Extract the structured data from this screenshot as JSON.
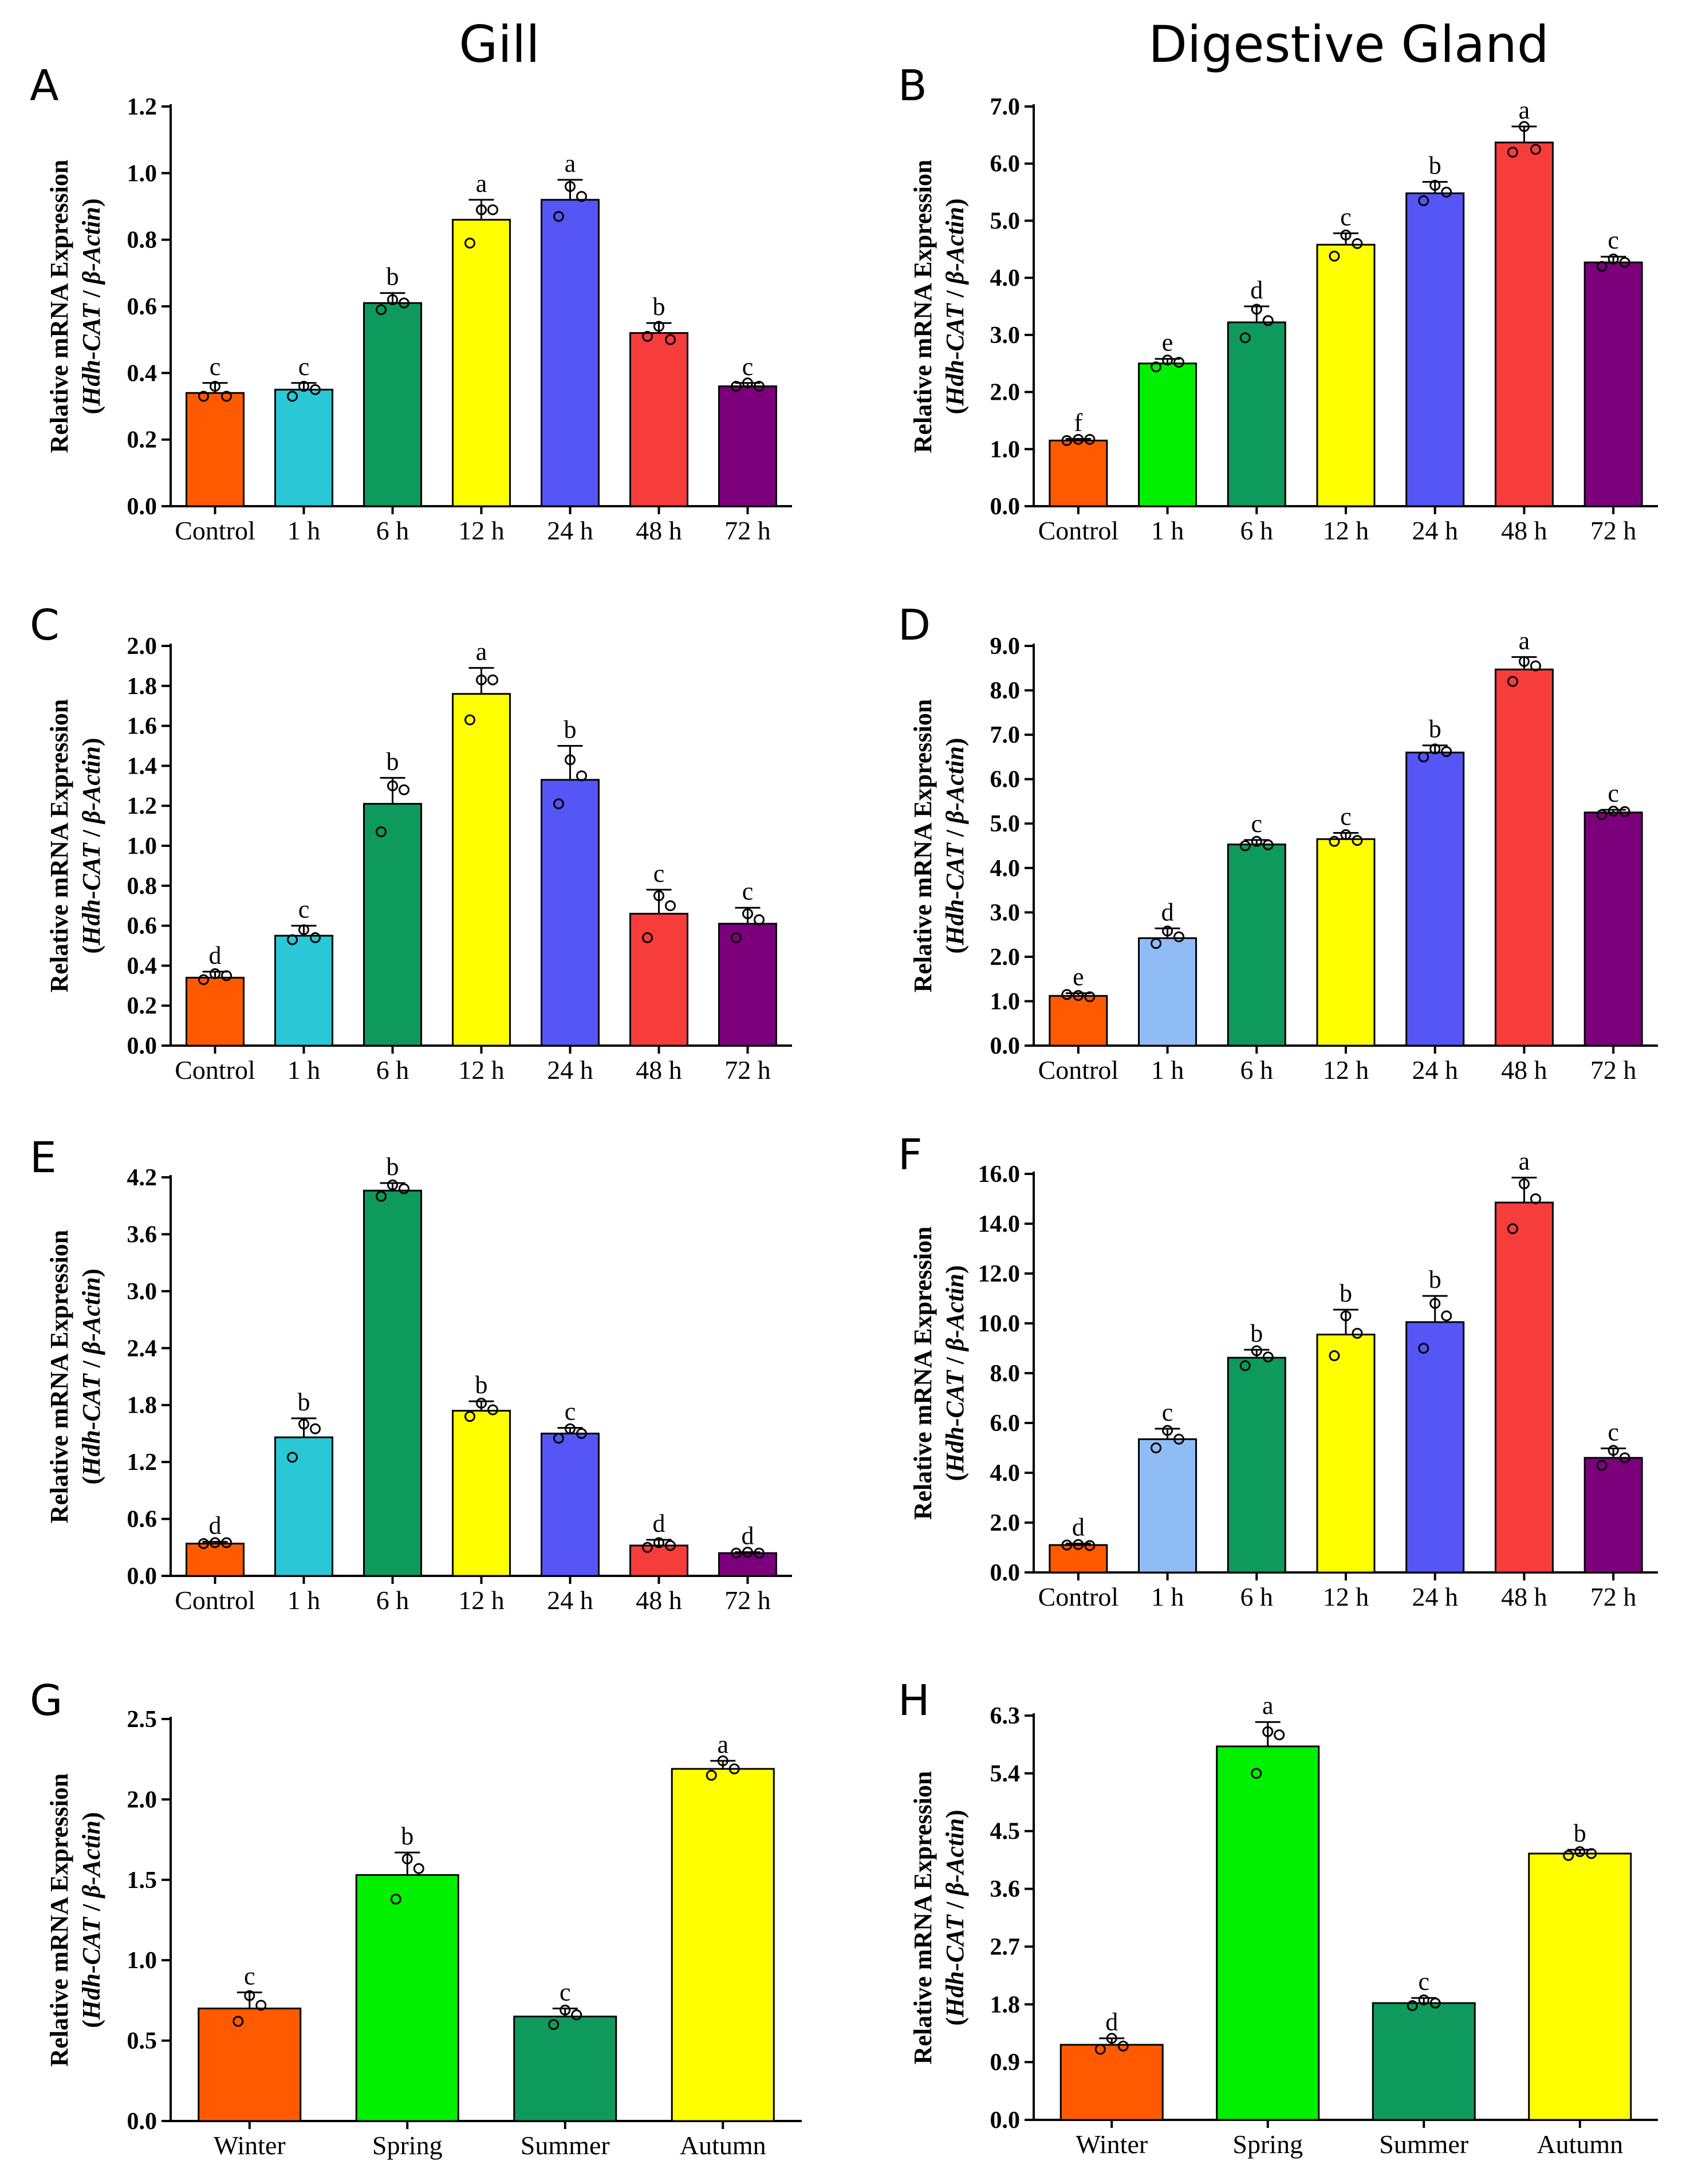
{
  "column_titles": [
    "Gill",
    "Digestive Gland"
  ],
  "y_label_line1": "Relative mRNA Expression",
  "y_label_line2": {
    "prefix": "(",
    "gene": "Hdh-CAT",
    "sep": " / ",
    "ref": "β-Actin",
    "suffix": ")"
  },
  "colors": {
    "control": "#ff5a00",
    "cyan": "#2ac8d6",
    "light_green": "#00f000",
    "light_blue": "#8fbcf4",
    "green": "#0e9a5c",
    "yellow": "#ffff00",
    "blue": "#5556f5",
    "red": "#f73c3c",
    "purple": "#7c007c"
  },
  "chart_data": [
    {
      "type": "bar",
      "panel": "A",
      "ylim": [
        0,
        1.2
      ],
      "yticks": [
        "0.0",
        "0.2",
        "0.4",
        "0.6",
        "0.8",
        "1.0",
        "1.2"
      ],
      "categories": [
        "Control",
        "1 h",
        "6 h",
        "12 h",
        "24 h",
        "48 h",
        "72 h"
      ],
      "values": [
        0.34,
        0.35,
        0.61,
        0.86,
        0.92,
        0.52,
        0.36
      ],
      "errors": [
        0.03,
        0.02,
        0.03,
        0.06,
        0.06,
        0.03,
        0.01
      ],
      "letters": [
        "c",
        "c",
        "b",
        "a",
        "a",
        "b",
        "c"
      ],
      "colors": [
        "#ff5a00",
        "#2ac8d6",
        "#0e9a5c",
        "#ffff00",
        "#5556f5",
        "#f73c3c",
        "#7c007c"
      ],
      "points": [
        [
          0.33,
          0.36,
          0.33
        ],
        [
          0.33,
          0.36,
          0.35
        ],
        [
          0.59,
          0.62,
          0.61
        ],
        [
          0.79,
          0.89,
          0.89
        ],
        [
          0.87,
          0.96,
          0.93
        ],
        [
          0.51,
          0.54,
          0.5
        ],
        [
          0.36,
          0.37,
          0.36
        ]
      ]
    },
    {
      "type": "bar",
      "panel": "B",
      "ylim": [
        0,
        7.0
      ],
      "yticks": [
        "0.0",
        "1.0",
        "2.0",
        "3.0",
        "4.0",
        "5.0",
        "6.0",
        "7.0"
      ],
      "categories": [
        "Control",
        "1 h",
        "6 h",
        "12 h",
        "24 h",
        "48 h",
        "72 h"
      ],
      "values": [
        1.15,
        2.5,
        3.22,
        4.58,
        5.48,
        6.37,
        4.27
      ],
      "errors": [
        0.03,
        0.08,
        0.28,
        0.2,
        0.2,
        0.28,
        0.1
      ],
      "letters": [
        "f",
        "e",
        "d",
        "c",
        "b",
        "a",
        "c"
      ],
      "colors": [
        "#ff5a00",
        "#00f000",
        "#0e9a5c",
        "#ffff00",
        "#5556f5",
        "#f73c3c",
        "#7c007c"
      ],
      "points": [
        [
          1.15,
          1.17,
          1.17
        ],
        [
          2.44,
          2.56,
          2.52
        ],
        [
          2.95,
          3.45,
          3.25
        ],
        [
          4.38,
          4.75,
          4.6
        ],
        [
          5.35,
          5.62,
          5.5
        ],
        [
          6.2,
          6.65,
          6.25
        ],
        [
          4.2,
          4.33,
          4.27
        ]
      ]
    },
    {
      "type": "bar",
      "panel": "C",
      "ylim": [
        0,
        2.0
      ],
      "yticks": [
        "0.0",
        "0.2",
        "0.4",
        "0.6",
        "0.8",
        "1.0",
        "1.2",
        "1.4",
        "1.6",
        "1.8",
        "2.0"
      ],
      "categories": [
        "Control",
        "1 h",
        "6 h",
        "12 h",
        "24 h",
        "48 h",
        "72 h"
      ],
      "values": [
        0.34,
        0.55,
        1.21,
        1.76,
        1.33,
        0.66,
        0.61
      ],
      "errors": [
        0.03,
        0.05,
        0.13,
        0.13,
        0.17,
        0.12,
        0.08
      ],
      "letters": [
        "d",
        "c",
        "b",
        "a",
        "b",
        "c",
        "c"
      ],
      "colors": [
        "#ff5a00",
        "#2ac8d6",
        "#0e9a5c",
        "#ffff00",
        "#5556f5",
        "#f73c3c",
        "#7c007c"
      ],
      "points": [
        [
          0.33,
          0.36,
          0.35
        ],
        [
          0.53,
          0.58,
          0.54
        ],
        [
          1.07,
          1.3,
          1.28
        ],
        [
          1.63,
          1.83,
          1.83
        ],
        [
          1.21,
          1.43,
          1.35
        ],
        [
          0.54,
          0.75,
          0.7
        ],
        [
          0.54,
          0.66,
          0.63
        ]
      ]
    },
    {
      "type": "bar",
      "panel": "D",
      "ylim": [
        0,
        9.0
      ],
      "yticks": [
        "0.0",
        "1.0",
        "2.0",
        "3.0",
        "4.0",
        "5.0",
        "6.0",
        "7.0",
        "8.0",
        "9.0"
      ],
      "categories": [
        "Control",
        "1 h",
        "6 h",
        "12 h",
        "24 h",
        "48 h",
        "72 h"
      ],
      "values": [
        1.12,
        2.42,
        4.53,
        4.65,
        6.6,
        8.47,
        5.25
      ],
      "errors": [
        0.06,
        0.22,
        0.1,
        0.14,
        0.16,
        0.28,
        0.06
      ],
      "letters": [
        "e",
        "d",
        "c",
        "c",
        "b",
        "a",
        "c"
      ],
      "colors": [
        "#ff5a00",
        "#8fbcf4",
        "#0e9a5c",
        "#ffff00",
        "#5556f5",
        "#f73c3c",
        "#7c007c"
      ],
      "points": [
        [
          1.15,
          1.13,
          1.1
        ],
        [
          2.3,
          2.58,
          2.45
        ],
        [
          4.5,
          4.6,
          4.52
        ],
        [
          4.6,
          4.75,
          4.62
        ],
        [
          6.5,
          6.68,
          6.62
        ],
        [
          8.2,
          8.65,
          8.55
        ],
        [
          5.2,
          5.28,
          5.27
        ]
      ]
    },
    {
      "type": "bar",
      "panel": "E",
      "ylim": [
        0,
        4.2
      ],
      "yticks": [
        "0.0",
        "0.6",
        "1.2",
        "1.8",
        "2.4",
        "3.0",
        "3.6",
        "4.2"
      ],
      "categories": [
        "Control",
        "1 h",
        "6 h",
        "12 h",
        "24 h",
        "48 h",
        "72 h"
      ],
      "values": [
        0.34,
        1.46,
        4.06,
        1.74,
        1.5,
        0.32,
        0.24
      ],
      "errors": [
        0.02,
        0.2,
        0.08,
        0.1,
        0.06,
        0.06,
        0.01
      ],
      "letters": [
        "d",
        "b",
        "b",
        "b",
        "c",
        "d",
        "d"
      ],
      "colors": [
        "#ff5a00",
        "#2ac8d6",
        "#0e9a5c",
        "#ffff00",
        "#5556f5",
        "#f73c3c",
        "#7c007c"
      ],
      "points": [
        [
          0.34,
          0.35,
          0.35
        ],
        [
          1.25,
          1.6,
          1.55
        ],
        [
          4.0,
          4.12,
          4.08
        ],
        [
          1.68,
          1.82,
          1.75
        ],
        [
          1.45,
          1.55,
          1.5
        ],
        [
          0.3,
          0.35,
          0.32
        ],
        [
          0.24,
          0.25,
          0.24
        ]
      ]
    },
    {
      "type": "bar",
      "panel": "F",
      "ylim": [
        0,
        16.0
      ],
      "yticks": [
        "0.0",
        "2.0",
        "4.0",
        "6.0",
        "8.0",
        "10.0",
        "12.0",
        "14.0",
        "16.0"
      ],
      "categories": [
        "Control",
        "1 h",
        "6 h",
        "12 h",
        "24 h",
        "48 h",
        "72 h"
      ],
      "values": [
        1.1,
        5.35,
        8.62,
        9.55,
        10.05,
        14.85,
        4.6
      ],
      "errors": [
        0.06,
        0.42,
        0.32,
        1.0,
        1.05,
        1.0,
        0.38
      ],
      "letters": [
        "d",
        "c",
        "b",
        "b",
        "b",
        "a",
        "c"
      ],
      "colors": [
        "#ff5a00",
        "#8fbcf4",
        "#0e9a5c",
        "#ffff00",
        "#5556f5",
        "#f73c3c",
        "#7c007c"
      ],
      "points": [
        [
          1.1,
          1.12,
          1.08
        ],
        [
          5.0,
          5.7,
          5.35
        ],
        [
          8.3,
          8.9,
          8.65
        ],
        [
          8.7,
          10.3,
          9.6
        ],
        [
          9.0,
          10.8,
          10.3
        ],
        [
          13.8,
          15.6,
          15.0
        ],
        [
          4.3,
          4.9,
          4.6
        ]
      ]
    },
    {
      "type": "bar",
      "panel": "G",
      "ylim": [
        0,
        2.5
      ],
      "yticks": [
        "0.0",
        "0.5",
        "1.0",
        "1.5",
        "2.0",
        "2.5"
      ],
      "categories": [
        "Winter",
        "Spring",
        "Summer",
        "Autumn"
      ],
      "values": [
        0.7,
        1.53,
        0.65,
        2.19
      ],
      "errors": [
        0.1,
        0.14,
        0.05,
        0.05
      ],
      "letters": [
        "c",
        "b",
        "c",
        "a"
      ],
      "colors": [
        "#ff5a00",
        "#00f000",
        "#0e9a5c",
        "#ffff00"
      ],
      "points": [
        [
          0.62,
          0.78,
          0.72
        ],
        [
          1.38,
          1.63,
          1.57
        ],
        [
          0.6,
          0.69,
          0.66
        ],
        [
          2.15,
          2.24,
          2.19
        ]
      ]
    },
    {
      "type": "bar",
      "panel": "H",
      "ylim": [
        0,
        6.3
      ],
      "yticks": [
        "0.0",
        "0.9",
        "1.8",
        "2.7",
        "3.6",
        "4.5",
        "5.4",
        "6.3"
      ],
      "categories": [
        "Winter",
        "Spring",
        "Summer",
        "Autumn"
      ],
      "values": [
        1.17,
        5.82,
        1.82,
        4.15
      ],
      "errors": [
        0.1,
        0.38,
        0.08,
        0.06
      ],
      "letters": [
        "d",
        "a",
        "c",
        "b"
      ],
      "colors": [
        "#ff5a00",
        "#00f000",
        "#0e9a5c",
        "#ffff00"
      ],
      "points": [
        [
          1.1,
          1.27,
          1.15
        ],
        [
          5.4,
          6.05,
          6.0
        ],
        [
          1.78,
          1.87,
          1.82
        ],
        [
          4.12,
          4.18,
          4.15
        ]
      ]
    }
  ]
}
